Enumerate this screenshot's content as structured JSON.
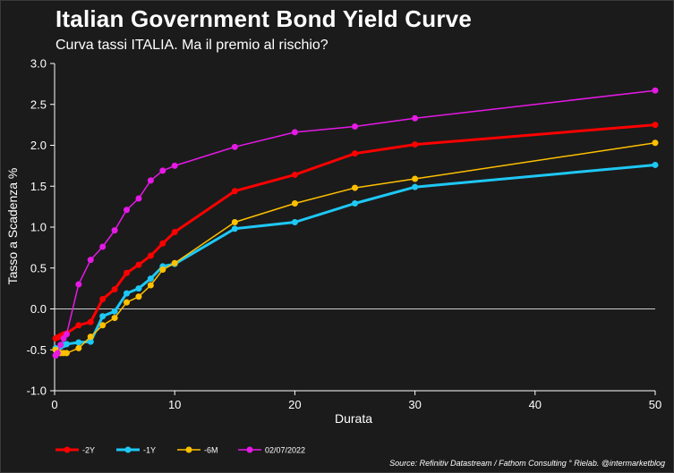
{
  "header": {
    "title": "Italian Government Bond Yield Curve",
    "subtitle": "Curva tassi ITALIA. Ma il premio al rischio?"
  },
  "footer": {
    "source": "Source: Refinitiv Datastream / Fathom Consulting ° Rielab. @intermarketblog"
  },
  "colors": {
    "background": "#1b1b1b",
    "axis": "#ffffff",
    "zero_line": "#cccccc"
  },
  "chart_data": {
    "type": "line",
    "title": "Italian Government Bond Yield Curve",
    "subtitle": "Curva tassi ITALIA. Ma il premio al rischio?",
    "xlabel": "Durata",
    "ylabel": "Tasso a Scadenza %",
    "xlim": [
      0,
      50
    ],
    "ylim": [
      -1.0,
      3.0
    ],
    "xticks": [
      0,
      10,
      20,
      30,
      40,
      50
    ],
    "xtick_labels": [
      "0",
      "10",
      "20",
      "30",
      "40",
      "50"
    ],
    "yticks": [
      -1.0,
      -0.5,
      0.0,
      0.5,
      1.0,
      1.5,
      2.0,
      2.5,
      3.0
    ],
    "ytick_labels": [
      "-1.0",
      "-0.5",
      "0.0",
      "0.5",
      "1.0",
      "1.5",
      "2.0",
      "2.5",
      "3.0"
    ],
    "grid": false,
    "zero_line": true,
    "legend_position": "bottom-left",
    "series": [
      {
        "name": "-2Y",
        "color": "#ff0000",
        "width": 3,
        "x": [
          0.08,
          0.25,
          0.5,
          0.75,
          1,
          2,
          3,
          4,
          5,
          6,
          7,
          8,
          9,
          10,
          15,
          20,
          25,
          30,
          50
        ],
        "y": [
          -0.36,
          -0.35,
          -0.33,
          -0.31,
          -0.3,
          -0.2,
          -0.16,
          0.12,
          0.24,
          0.44,
          0.54,
          0.65,
          0.8,
          0.94,
          1.44,
          1.64,
          1.9,
          2.01,
          2.25
        ]
      },
      {
        "name": "-1Y",
        "color": "#1ec8f5",
        "width": 3,
        "x": [
          0.08,
          0.25,
          0.5,
          0.75,
          1,
          2,
          3,
          4,
          5,
          6,
          7,
          8,
          9,
          10,
          15,
          20,
          25,
          30,
          50
        ],
        "y": [
          -0.48,
          -0.5,
          -0.46,
          -0.44,
          -0.43,
          -0.41,
          -0.4,
          -0.09,
          -0.03,
          0.19,
          0.25,
          0.37,
          0.52,
          0.55,
          0.98,
          1.06,
          1.29,
          1.49,
          1.76
        ]
      },
      {
        "name": "-6M",
        "color": "#ffc000",
        "width": 1.5,
        "x": [
          0.08,
          0.25,
          0.5,
          0.75,
          1,
          2,
          3,
          4,
          5,
          6,
          7,
          8,
          9,
          10,
          15,
          20,
          25,
          30,
          50
        ],
        "y": [
          -0.5,
          -0.52,
          -0.54,
          -0.54,
          -0.54,
          -0.48,
          -0.34,
          -0.2,
          -0.11,
          0.08,
          0.15,
          0.29,
          0.48,
          0.56,
          1.06,
          1.29,
          1.48,
          1.59,
          2.03
        ]
      },
      {
        "name": "02/07/2022",
        "color": "#e619e6",
        "width": 1.5,
        "x": [
          0.08,
          0.25,
          0.5,
          0.75,
          1,
          2,
          3,
          4,
          5,
          6,
          7,
          8,
          9,
          10,
          15,
          20,
          25,
          30,
          50
        ],
        "y": [
          -0.57,
          -0.54,
          -0.44,
          -0.36,
          -0.31,
          0.3,
          0.6,
          0.76,
          0.96,
          1.21,
          1.35,
          1.57,
          1.69,
          1.75,
          1.98,
          2.16,
          2.23,
          2.33,
          2.67
        ]
      }
    ]
  }
}
